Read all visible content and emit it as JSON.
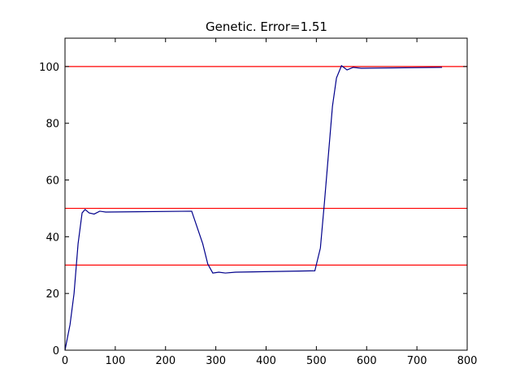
{
  "chart_data": {
    "type": "line",
    "title": "Genetic. Error=1.51",
    "xlim": [
      0,
      800
    ],
    "ylim": [
      0,
      110
    ],
    "xticks": [
      0,
      100,
      200,
      300,
      400,
      500,
      600,
      700,
      800
    ],
    "yticks": [
      0,
      20,
      40,
      60,
      80,
      100
    ],
    "series": [
      {
        "color": "#ff0000",
        "x": [
          0,
          800
        ],
        "values": [
          100,
          100
        ]
      },
      {
        "color": "#ff0000",
        "x": [
          0,
          800
        ],
        "values": [
          50,
          50
        ]
      },
      {
        "color": "#ff0000",
        "x": [
          0,
          800
        ],
        "values": [
          30,
          30
        ]
      },
      {
        "color": "#00008b",
        "x": [
          0,
          10,
          18,
          26,
          34,
          40,
          48,
          58,
          69,
          81,
          252,
          274,
          284,
          294,
          306,
          319,
          339,
          497,
          508,
          516,
          532,
          540,
          550,
          561,
          573,
          589,
          750
        ],
        "values": [
          0,
          9,
          20,
          37.5,
          48.4,
          49.6,
          48.4,
          48,
          49,
          48.7,
          49,
          37.5,
          30.4,
          27.2,
          27.5,
          27.2,
          27.5,
          28,
          36,
          52,
          86,
          96,
          100.3,
          98.8,
          99.7,
          99.4,
          99.7
        ]
      }
    ]
  }
}
